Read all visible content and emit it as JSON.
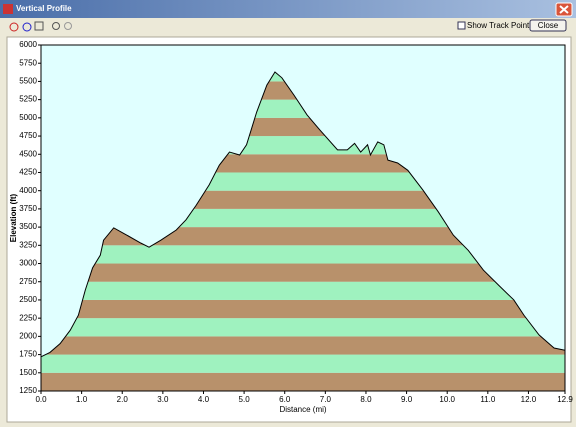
{
  "window": {
    "title": "Vertical Profile",
    "checkbox_label": "Show Track Points",
    "button": "Close"
  },
  "chart_data": {
    "type": "area",
    "x_label": "Distance (mi)",
    "y_label": "Elevation (ft)",
    "x": [
      0,
      0.22,
      0.47,
      0.72,
      0.92,
      1.09,
      1.27,
      1.46,
      1.54,
      1.79,
      2.08,
      2.46,
      2.66,
      2.95,
      3.33,
      3.57,
      3.82,
      4.14,
      4.39,
      4.64,
      4.89,
      5.06,
      5.31,
      5.56,
      5.76,
      5.93,
      6.23,
      6.55,
      6.87,
      7.3,
      7.54,
      7.72,
      7.87,
      8.04,
      8.11,
      8.29,
      8.44,
      8.54,
      8.78,
      9.03,
      9.4,
      9.78,
      10.15,
      10.52,
      10.89,
      11.27,
      11.64,
      11.89,
      12.26,
      12.63,
      12.9
    ],
    "y": [
      1720,
      1780,
      1900,
      2085,
      2290,
      2635,
      2940,
      3115,
      3320,
      3490,
      3400,
      3280,
      3225,
      3320,
      3460,
      3600,
      3800,
      4080,
      4350,
      4530,
      4490,
      4630,
      5080,
      5450,
      5630,
      5550,
      5310,
      5040,
      4830,
      4560,
      4560,
      4650,
      4530,
      4630,
      4490,
      4670,
      4630,
      4420,
      4380,
      4280,
      4010,
      3710,
      3390,
      3180,
      2910,
      2700,
      2500,
      2290,
      2020,
      1840,
      1810
    ],
    "xlim": [
      0,
      12.9
    ],
    "ylim": [
      1250,
      6000
    ],
    "xticks": [
      {
        "value": 0,
        "label": "0.0"
      },
      {
        "value": 1,
        "label": "1.0"
      },
      {
        "value": 2,
        "label": "2.0"
      },
      {
        "value": 3,
        "label": "3.0"
      },
      {
        "value": 4,
        "label": "4.0"
      },
      {
        "value": 5,
        "label": "5.0"
      },
      {
        "value": 6,
        "label": "6.0"
      },
      {
        "value": 7,
        "label": "7.0"
      },
      {
        "value": 8,
        "label": "8.0"
      },
      {
        "value": 9,
        "label": "9.0"
      },
      {
        "value": 10,
        "label": "10.0"
      },
      {
        "value": 11,
        "label": "11.0"
      },
      {
        "value": 12,
        "label": "12.0"
      },
      12.9
    ],
    "yticks": [
      1250,
      1500,
      1750,
      2000,
      2250,
      2500,
      2750,
      3000,
      3250,
      3500,
      3750,
      4000,
      4250,
      4500,
      4750,
      5000,
      5250,
      5500,
      5750,
      6000
    ],
    "color": "#000000",
    "background": "#e0ffff",
    "band_colors": [
      "#b8916b",
      "#9ff2bf"
    ]
  }
}
